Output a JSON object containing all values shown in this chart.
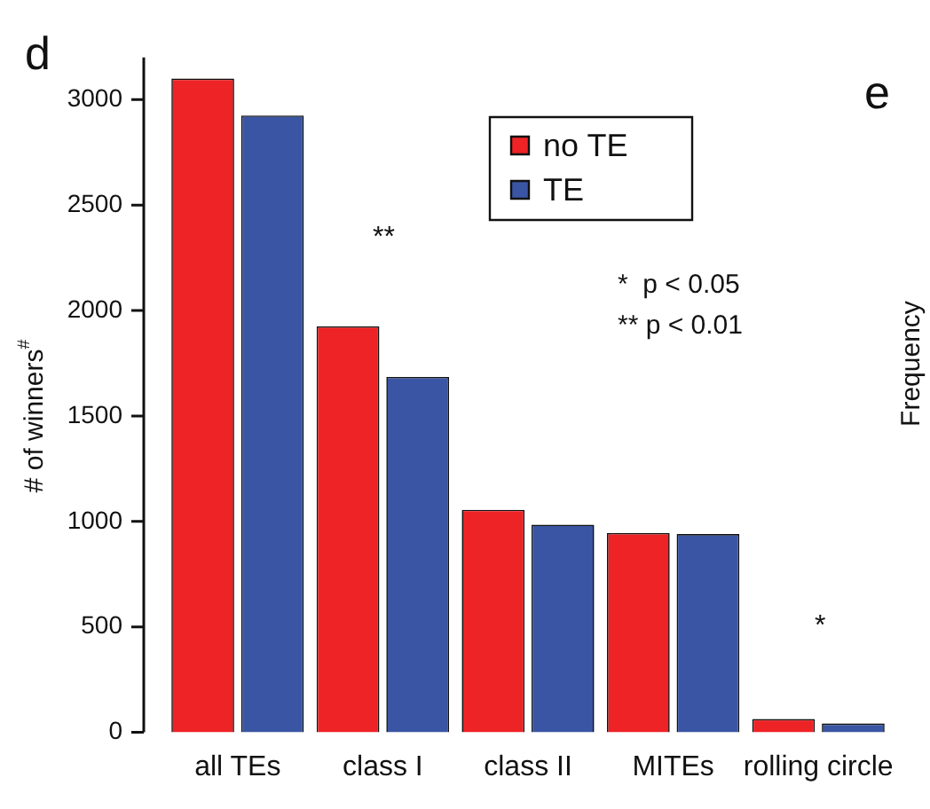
{
  "chart_data": {
    "type": "bar",
    "ylabel": "# of winners$^{#}$",
    "categories": [
      "all TEs",
      "class I",
      "class II",
      "MITEs",
      "rolling circle"
    ],
    "series": [
      {
        "name": "no TE",
        "color": "#ee2326",
        "values": [
          3100,
          1925,
          1055,
          945,
          63
        ]
      },
      {
        "name": "TE",
        "color": "#3a55a3",
        "values": [
          2925,
          1685,
          985,
          940,
          42
        ]
      }
    ],
    "ylim": [
      0,
      3200
    ],
    "yticks": [
      0,
      500,
      1000,
      1500,
      2000,
      2500,
      3000
    ],
    "grid": false,
    "legend": "top",
    "annotations": [
      "d",
      "e",
      "Frequency",
      "*  p < 0.05",
      "** p < 0.01",
      "**",
      "*"
    ]
  }
}
